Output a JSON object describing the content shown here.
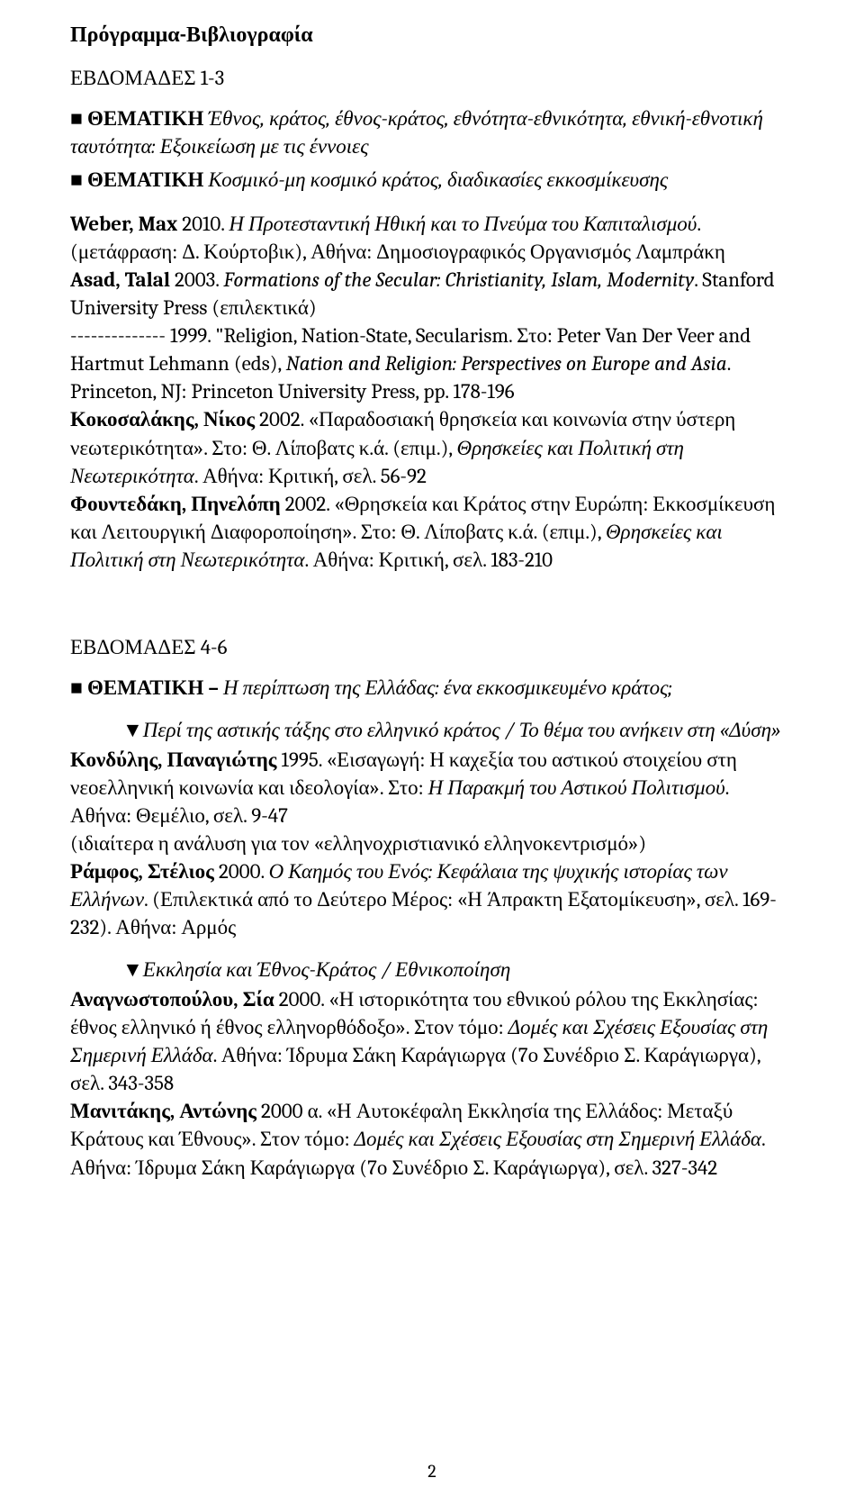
{
  "title": "Πρόγραμμα-Βιβλιογραφία",
  "section1": {
    "label": "ΕΒΔΟΜΑΔΕΣ 1-3",
    "theme1": {
      "bullet": "■ ",
      "label": "ΘΕΜΑΤΙΚΗ ",
      "desc": "Έθνος, κράτος, έθνος-κράτος, εθνότητα-εθνικότητα, εθνική-εθνοτική ταυτότητα: Εξοικείωση με τις έννοιες"
    },
    "theme2": {
      "bullet": "■ ",
      "label": "ΘΕΜΑΤΙΚΗ ",
      "desc": "Κοσμικό-μη κοσμικό κράτος, διαδικασίες εκκοσμίκευσης"
    },
    "weber_auth": "Weber, Max ",
    "weber_year": "2010.  ",
    "weber_title": "Η Προτεσταντική Ηθική και το Πνεύμα του Καπιταλισμού",
    "weber_rest": ". (μετάφραση: Δ. Κούρτοβικ), Αθήνα: Δημοσιογραφικός Οργανισμός Λαμπράκη",
    "asad_auth": "Asad, Talal ",
    "asad_year": "2003.  ",
    "asad_title": "Formations of the Secular: Christianity, Islam, Modernity",
    "asad_rest": ". Stanford University Press (επιλεκτικά)",
    "dash_year": "-------------- 1999.  ",
    "dash_q": "\"Religion, Nation-State, Secularism.",
    "dash_in": "  Στο: Peter Van Der Veer and Hartmut Lehmann (eds), ",
    "dash_title": "Nation and Religion: Perspectives on Europe and Asia",
    "dash_rest": ".  Princeton, NJ: Princeton University Press, pp. 178-196",
    "koko_auth": "Κοκοσαλάκης, Νίκος ",
    "koko_year": "2002.  ",
    "koko_q": "«Παραδοσιακή θρησκεία και κοινωνία στην ύστερη νεωτερικότητα».  Στο: Θ. Λίποβατς κ.ά. (επιμ.), ",
    "koko_title": "Θρησκείες και Πολιτική στη Νεωτερικότητα",
    "koko_rest": ".  Αθήνα: Κριτική, σελ. 56-92",
    "fount_auth": "Φουντεδάκη, Πηνελόπη ",
    "fount_year": "2002.  ",
    "fount_q": "«Θρησκεία και Κράτος στην Ευρώπη: Εκκοσμίκευση και Λειτουργική Διαφοροποίηση».  Στο: Θ. Λίποβατς κ.ά. (επιμ.), ",
    "fount_title": "Θρησκείες και Πολιτική στη Νεωτερικότητα",
    "fount_rest": ".  Αθήνα: Κριτική, σελ. 183-210"
  },
  "section2": {
    "label": "ΕΒΔΟΜΑΔΕΣ 4-6",
    "theme": {
      "bullet": "■ ",
      "label": "ΘΕΜΑΤΙΚΗ – ",
      "desc": "Η περίπτωση της Ελλάδας: ένα εκκοσμικευμένο κράτος;"
    },
    "sub1_tri": "▼",
    "sub1_txt": "Περί της αστικής τάξης στο ελληνικό κράτος /  Το θέμα του ανήκειν στη «Δύση»",
    "kond_auth": "Κονδύλης, Παναγιώτης ",
    "kond_year": "1995.  ",
    "kond_q": "«Εισαγωγή: Η καχεξία του αστικού στοιχείου στη νεοελληνική κοινωνία και ιδεολογία».   Στο: ",
    "kond_title": "Η Παρακμή του Αστικού Πολιτισμού",
    "kond_rest1": ".  Αθήνα: Θεμέλιο, σελ. 9-47",
    "kond_note": "(ιδιαίτερα η ανάλυση για τον «ελληνοχριστιανικό ελληνοκεντρισμό»)",
    "ram_auth": "Ράμφος, Στέλιος ",
    "ram_year": "2000.  ",
    "ram_title": "Ο Καημός του Ενός: Κεφάλαια της ψυχικής ιστορίας των Ελλήνων",
    "ram_rest": ".  (Επιλεκτικά από το Δεύτερο Μέρος: «Η Άπρακτη Εξατομίκευση», σελ. 169-232).  Αθήνα: Αρμός",
    "sub2_tri": "▼",
    "sub2_txt": "Εκκλησία και Έθνος-Κράτος / Εθνικοποίηση",
    "anag_auth": "Αναγνωστοπούλου, Σία ",
    "anag_year": "2000.  ",
    "anag_q": "«Η ιστορικότητα του εθνικού ρόλου της Εκκλησίας: έθνος ελληνικό ή έθνος ελληνορθόδοξο».  Στον τόμο: ",
    "anag_title": "Δομές και Σχέσεις Εξουσίας στη Σημερινή Ελλάδα",
    "anag_rest": ".  Αθήνα: Ίδρυμα Σάκη Καράγιωργα (7ο Συνέδριο Σ. Καράγιωργα), σελ. 343-358",
    "man_auth": "Μανιτάκης, Αντώνης ",
    "man_year": "2000 α.  ",
    "man_q": "«Η Αυτοκέφαλη Εκκλησία της Ελλάδος: Μεταξύ Κράτους και Έθνους».  Στον τόμο: ",
    "man_title": "Δομές και Σχέσεις Εξουσίας στη Σημερινή Ελλάδα",
    "man_rest": ".  Αθήνα: Ίδρυμα Σάκη Καράγιωργα (7ο Συνέδριο Σ. Καράγιωργα), σελ. 327-342"
  },
  "pagenum": "2"
}
